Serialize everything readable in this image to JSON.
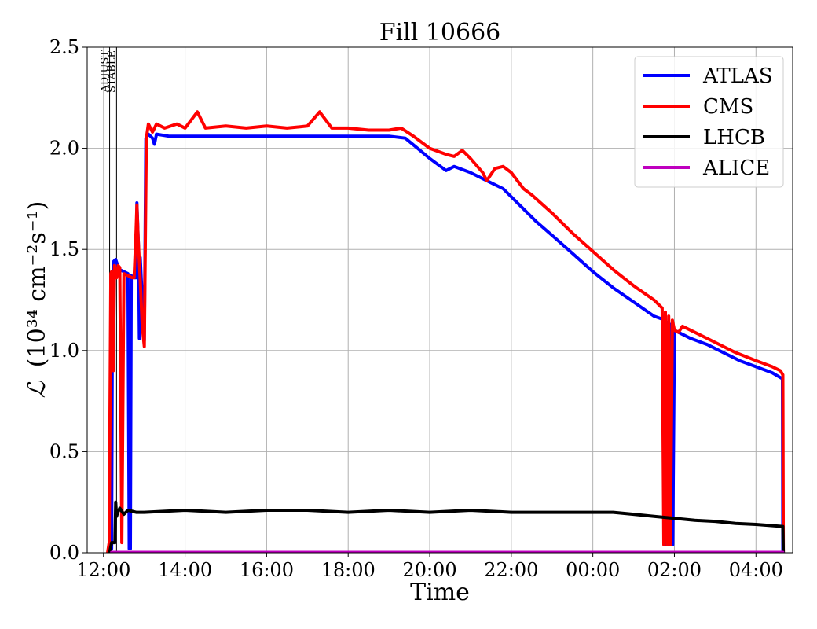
{
  "chart_data": {
    "type": "line",
    "title": "Fill 10666",
    "xlabel": "Time",
    "ylabel_main": "ℒ",
    "ylabel_units": "(10³⁴ cm⁻²s⁻¹)",
    "x_unit": "hours since 00:00 of the fill's start day (values over 24 are the next day)",
    "xlim": [
      11.6,
      28.9
    ],
    "ylim": [
      0.0,
      2.5
    ],
    "grid": true,
    "legend_position": "top-right",
    "x_ticks": [
      {
        "value": 12,
        "label": "12:00"
      },
      {
        "value": 14,
        "label": "14:00"
      },
      {
        "value": 16,
        "label": "16:00"
      },
      {
        "value": 18,
        "label": "18:00"
      },
      {
        "value": 20,
        "label": "20:00"
      },
      {
        "value": 22,
        "label": "22:00"
      },
      {
        "value": 24,
        "label": "00:00"
      },
      {
        "value": 26,
        "label": "02:00"
      },
      {
        "value": 28,
        "label": "04:00"
      }
    ],
    "y_ticks": [
      {
        "value": 0.0,
        "label": "0.0"
      },
      {
        "value": 0.5,
        "label": "0.5"
      },
      {
        "value": 1.0,
        "label": "1.0"
      },
      {
        "value": 1.5,
        "label": "1.5"
      },
      {
        "value": 2.0,
        "label": "2.0"
      },
      {
        "value": 2.5,
        "label": "2.5"
      }
    ],
    "markers": [
      {
        "label": "ADJUST",
        "x": 12.15
      },
      {
        "label": "STABLE",
        "x": 12.32
      }
    ],
    "series": [
      {
        "name": "ATLAS",
        "color": "#0000ff",
        "points": [
          [
            12.15,
            0.0
          ],
          [
            12.2,
            0.02
          ],
          [
            12.22,
            1.35
          ],
          [
            12.25,
            1.44
          ],
          [
            12.3,
            1.45
          ],
          [
            12.35,
            1.42
          ],
          [
            12.4,
            1.4
          ],
          [
            12.5,
            1.39
          ],
          [
            12.6,
            1.38
          ],
          [
            12.63,
            0.02
          ],
          [
            12.66,
            0.02
          ],
          [
            12.68,
            1.37
          ],
          [
            12.75,
            1.36
          ],
          [
            12.8,
            1.36
          ],
          [
            12.82,
            1.73
          ],
          [
            12.86,
            1.5
          ],
          [
            12.88,
            1.06
          ],
          [
            12.9,
            1.46
          ],
          [
            12.95,
            1.25
          ],
          [
            13.0,
            1.05
          ],
          [
            13.04,
            2.05
          ],
          [
            13.1,
            2.07
          ],
          [
            13.2,
            2.05
          ],
          [
            13.25,
            2.02
          ],
          [
            13.3,
            2.07
          ],
          [
            13.6,
            2.06
          ],
          [
            14.0,
            2.06
          ],
          [
            15.0,
            2.06
          ],
          [
            16.0,
            2.06
          ],
          [
            17.0,
            2.06
          ],
          [
            18.0,
            2.06
          ],
          [
            19.0,
            2.06
          ],
          [
            19.4,
            2.05
          ],
          [
            19.7,
            2.0
          ],
          [
            20.0,
            1.95
          ],
          [
            20.2,
            1.92
          ],
          [
            20.4,
            1.89
          ],
          [
            20.6,
            1.91
          ],
          [
            21.0,
            1.88
          ],
          [
            21.4,
            1.84
          ],
          [
            21.6,
            1.82
          ],
          [
            21.8,
            1.8
          ],
          [
            22.2,
            1.72
          ],
          [
            22.6,
            1.64
          ],
          [
            23.0,
            1.57
          ],
          [
            23.5,
            1.48
          ],
          [
            24.0,
            1.39
          ],
          [
            24.5,
            1.31
          ],
          [
            25.0,
            1.24
          ],
          [
            25.5,
            1.17
          ],
          [
            25.78,
            1.15
          ],
          [
            25.8,
            0.04
          ],
          [
            25.84,
            1.14
          ],
          [
            25.88,
            0.04
          ],
          [
            25.92,
            1.13
          ],
          [
            25.96,
            0.04
          ],
          [
            26.0,
            1.1
          ],
          [
            26.4,
            1.06
          ],
          [
            26.8,
            1.03
          ],
          [
            27.2,
            0.99
          ],
          [
            27.6,
            0.95
          ],
          [
            28.0,
            0.92
          ],
          [
            28.4,
            0.89
          ],
          [
            28.65,
            0.86
          ],
          [
            28.66,
            0.0
          ]
        ]
      },
      {
        "name": "CMS",
        "color": "#ff0000",
        "points": [
          [
            12.1,
            0.0
          ],
          [
            12.14,
            0.05
          ],
          [
            12.18,
            1.38
          ],
          [
            12.2,
            1.39
          ],
          [
            12.24,
            0.9
          ],
          [
            12.27,
            1.42
          ],
          [
            12.32,
            1.36
          ],
          [
            12.36,
            1.42
          ],
          [
            12.4,
            1.41
          ],
          [
            12.45,
            0.05
          ],
          [
            12.5,
            1.38
          ],
          [
            12.6,
            1.37
          ],
          [
            12.7,
            1.36
          ],
          [
            12.75,
            1.36
          ],
          [
            12.8,
            1.6
          ],
          [
            12.82,
            1.72
          ],
          [
            12.85,
            1.55
          ],
          [
            12.9,
            1.35
          ],
          [
            12.95,
            1.12
          ],
          [
            13.0,
            1.02
          ],
          [
            13.05,
            2.05
          ],
          [
            13.1,
            2.12
          ],
          [
            13.2,
            2.08
          ],
          [
            13.3,
            2.12
          ],
          [
            13.5,
            2.1
          ],
          [
            13.8,
            2.12
          ],
          [
            14.0,
            2.1
          ],
          [
            14.3,
            2.18
          ],
          [
            14.5,
            2.1
          ],
          [
            15.0,
            2.11
          ],
          [
            15.5,
            2.1
          ],
          [
            16.0,
            2.11
          ],
          [
            16.5,
            2.1
          ],
          [
            17.0,
            2.11
          ],
          [
            17.3,
            2.18
          ],
          [
            17.6,
            2.1
          ],
          [
            18.0,
            2.1
          ],
          [
            18.5,
            2.09
          ],
          [
            19.0,
            2.09
          ],
          [
            19.3,
            2.1
          ],
          [
            19.6,
            2.06
          ],
          [
            20.0,
            2.0
          ],
          [
            20.4,
            1.97
          ],
          [
            20.6,
            1.96
          ],
          [
            20.8,
            1.99
          ],
          [
            21.0,
            1.95
          ],
          [
            21.3,
            1.88
          ],
          [
            21.4,
            1.84
          ],
          [
            21.6,
            1.9
          ],
          [
            21.8,
            1.91
          ],
          [
            22.0,
            1.88
          ],
          [
            22.3,
            1.8
          ],
          [
            22.5,
            1.77
          ],
          [
            23.0,
            1.68
          ],
          [
            23.5,
            1.58
          ],
          [
            24.0,
            1.49
          ],
          [
            24.5,
            1.4
          ],
          [
            25.0,
            1.32
          ],
          [
            25.5,
            1.25
          ],
          [
            25.7,
            1.21
          ],
          [
            25.74,
            0.04
          ],
          [
            25.78,
            1.19
          ],
          [
            25.82,
            0.04
          ],
          [
            25.86,
            1.17
          ],
          [
            25.9,
            0.04
          ],
          [
            25.95,
            1.15
          ],
          [
            26.0,
            1.1
          ],
          [
            26.1,
            1.09
          ],
          [
            26.2,
            1.12
          ],
          [
            26.6,
            1.08
          ],
          [
            27.0,
            1.04
          ],
          [
            27.5,
            0.99
          ],
          [
            28.0,
            0.95
          ],
          [
            28.4,
            0.92
          ],
          [
            28.6,
            0.9
          ],
          [
            28.66,
            0.88
          ],
          [
            28.67,
            0.0
          ]
        ]
      },
      {
        "name": "LHCB",
        "color": "#000000",
        "points": [
          [
            12.15,
            0.0
          ],
          [
            12.2,
            0.05
          ],
          [
            12.28,
            0.05
          ],
          [
            12.3,
            0.25
          ],
          [
            12.32,
            0.18
          ],
          [
            12.35,
            0.2
          ],
          [
            12.4,
            0.22
          ],
          [
            12.5,
            0.19
          ],
          [
            12.6,
            0.21
          ],
          [
            12.8,
            0.2
          ],
          [
            13.0,
            0.2
          ],
          [
            14.0,
            0.21
          ],
          [
            15.0,
            0.2
          ],
          [
            16.0,
            0.21
          ],
          [
            17.0,
            0.21
          ],
          [
            18.0,
            0.2
          ],
          [
            19.0,
            0.21
          ],
          [
            20.0,
            0.2
          ],
          [
            21.0,
            0.21
          ],
          [
            22.0,
            0.2
          ],
          [
            23.0,
            0.2
          ],
          [
            24.0,
            0.2
          ],
          [
            24.5,
            0.2
          ],
          [
            25.0,
            0.19
          ],
          [
            25.5,
            0.18
          ],
          [
            26.0,
            0.17
          ],
          [
            26.5,
            0.16
          ],
          [
            27.0,
            0.155
          ],
          [
            27.5,
            0.145
          ],
          [
            28.0,
            0.14
          ],
          [
            28.66,
            0.13
          ],
          [
            28.67,
            0.0
          ]
        ]
      },
      {
        "name": "ALICE",
        "color": "#bf00bf",
        "points": [
          [
            12.2,
            0.002
          ],
          [
            28.66,
            0.002
          ]
        ]
      }
    ]
  }
}
